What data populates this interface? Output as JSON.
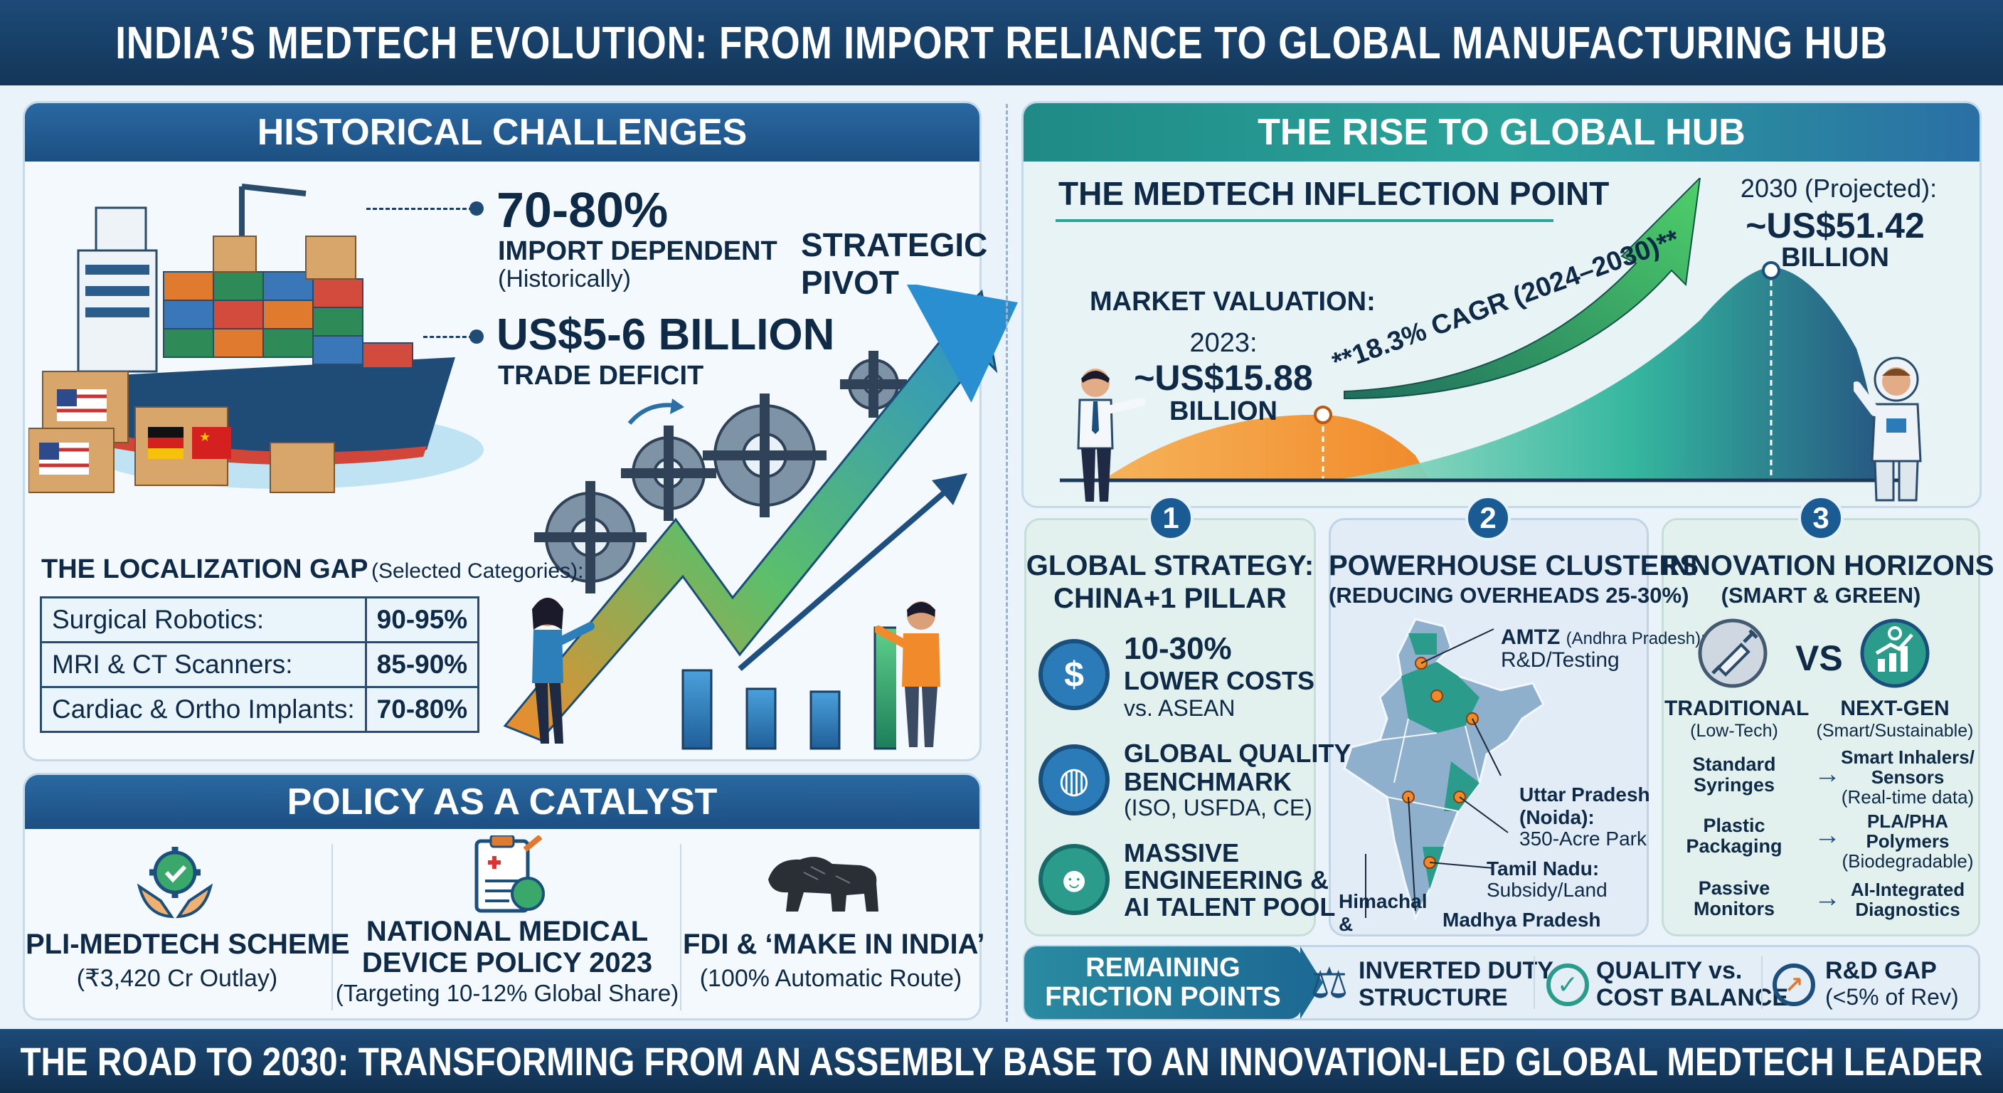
{
  "title": "INDIA’S MEDTECH EVOLUTION: FROM IMPORT RELIANCE TO GLOBAL MANUFACTURING HUB",
  "footer": "THE ROAD TO 2030: TRANSFORMING FROM AN ASSEMBLY BASE TO AN INNOVATION-LED GLOBAL MEDTECH LEADER",
  "historical": {
    "header": "HISTORICAL CHALLENGES",
    "stat1_value": "70-80%",
    "stat1_label": "IMPORT DEPENDENT",
    "stat1_sub": "(Historically)",
    "stat2_value": "US$5-6 BILLION",
    "stat2_label": "TRADE DEFICIT",
    "pivot": "STRATEGIC\nPIVOT",
    "gap_title": "THE LOCALIZATION GAP",
    "gap_sub": "(Selected Categories):",
    "rows": [
      {
        "label": "Surgical Robotics:",
        "value": "90-95%"
      },
      {
        "label": "MRI & CT Scanners:",
        "value": "85-90%"
      },
      {
        "label": "Cardiac & Ortho Implants:",
        "value": "70-80%"
      }
    ],
    "bars": [
      0.55,
      0.42,
      0.4,
      0.85
    ]
  },
  "policy": {
    "header": "POLICY AS A CATALYST",
    "items": [
      {
        "title": "PLI-MEDTECH SCHEME",
        "sub": "(₹3,420 Cr Outlay)",
        "icon": "gear-hands-icon"
      },
      {
        "title1": "NATIONAL MEDICAL",
        "title2": "DEVICE POLICY 2023",
        "sub": "(Targeting 10-12% Global Share)",
        "icon": "policy-document-icon"
      },
      {
        "title": "FDI & ‘MAKE IN INDIA’",
        "sub": "(100% Automatic Route)",
        "icon": "lion-icon"
      }
    ]
  },
  "rise": {
    "header": "THE RISE TO GLOBAL HUB",
    "inflection": "THE MEDTECH INFLECTION POINT",
    "market": "MARKET VALUATION:",
    "y2023_label": "2023:",
    "y2023_value": "~US$15.88",
    "y2023_unit": "BILLION",
    "cagr": "**18.3% CAGR (2024–2030)**",
    "y2030_label": "2030 (Projected):",
    "y2030_value": "~US$51.42",
    "y2030_unit": "BILLION"
  },
  "pillars": [
    {
      "num": "1",
      "title1": "GLOBAL STRATEGY:",
      "title2": "CHINA+1 PILLAR",
      "items": [
        {
          "icon": "dollar-hand-icon",
          "l1": "10-30%",
          "l2": "LOWER COSTS",
          "l3": "vs. ASEAN"
        },
        {
          "icon": "globe-icon",
          "l1": "GLOBAL QUALITY",
          "l2": "BENCHMARK",
          "l3": "(ISO, USFDA, CE)"
        },
        {
          "icon": "engineer-icon",
          "l1": "MASSIVE",
          "l2": "ENGINEERING &",
          "l3": "AI TALENT POOL"
        }
      ]
    },
    {
      "num": "2",
      "title1": "POWERHOUSE CLUSTERS",
      "title2": "(REDUCING OVERHEADS 25-30%)",
      "amtz": "AMTZ",
      "amtz_sub": "(Andhra Pradesh):",
      "amtz_sub2": "R&D/Testing",
      "up": "Uttar Pradesh",
      "up2": "(Noida):",
      "up3": "350-Acre Park",
      "tn": "Tamil Nadu:",
      "tn2": "Subsidy/Land",
      "hp": "Himachal",
      "hp2": "&",
      "mp": "Madhya Pradesh"
    },
    {
      "num": "3",
      "title1": "INNOVATION HORIZONS",
      "title2": "(SMART & GREEN)",
      "vs": "VS",
      "trad": "TRADITIONAL",
      "trad_sub": "(Low-Tech)",
      "next": "NEXT-GEN",
      "next_sub": "(Smart/Sustainable)",
      "pairs": [
        {
          "a1": "Standard",
          "a2": "Syringes",
          "b1": "Smart Inhalers/",
          "b2": "Sensors",
          "b3": "(Real-time data)"
        },
        {
          "a1": "Plastic",
          "a2": "Packaging",
          "b1": "PLA/PHA",
          "b2": "Polymers",
          "b3": "(Biodegradable)"
        },
        {
          "a1": "Passive",
          "a2": "Monitors",
          "b1": "AI-Integrated",
          "b2": "Diagnostics",
          "b3": ""
        }
      ]
    }
  ],
  "friction": {
    "label1": "REMAINING",
    "label2": "FRICTION POINTS",
    "items": [
      {
        "icon": "gavel-icon",
        "l1": "INVERTED DUTY",
        "l2": "STRUCTURE"
      },
      {
        "icon": "check-circle-icon",
        "l1": "QUALITY vs.",
        "l2": "COST BALANCE"
      },
      {
        "icon": "research-icon",
        "l1": "R&D GAP",
        "l2": "(<5% of Rev)"
      }
    ]
  }
}
